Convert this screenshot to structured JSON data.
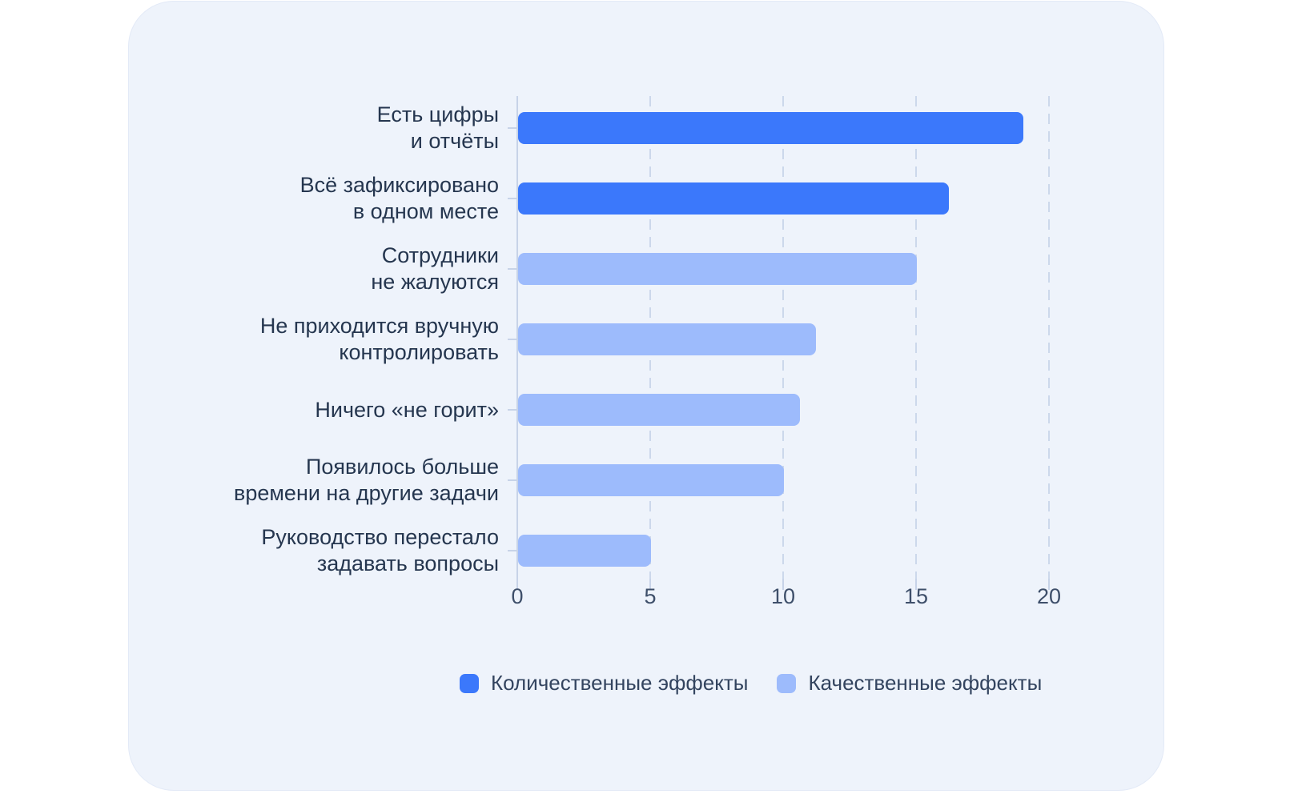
{
  "page": {
    "background": "#ffffff"
  },
  "card": {
    "background": "#eef3fb"
  },
  "chart_data": {
    "type": "bar",
    "orientation": "horizontal",
    "categories": [
      "Есть цифры\nи отчёты",
      "Всё зафиксировано\nв одном месте",
      "Сотрудники\nне жалуются",
      "Не приходится вручную\nконтролировать",
      "Ничего «не горит»",
      "Появилось больше\nвремени на другие задачи",
      "Руководство перестало\nзадавать вопросы"
    ],
    "values": [
      19,
      16.2,
      15,
      11.2,
      10.6,
      10,
      5
    ],
    "series_of_bar": [
      0,
      0,
      1,
      1,
      1,
      1,
      1
    ],
    "series": [
      {
        "name": "Количественные эффекты",
        "color": "#3b78fb"
      },
      {
        "name": "Качественные эффекты",
        "color": "#9dbbfc"
      }
    ],
    "xticks": [
      0,
      5,
      10,
      15,
      20
    ],
    "xlim": [
      0,
      20
    ],
    "xlabel": "",
    "ylabel": "",
    "title": "",
    "grid": "vertical-dashed",
    "legend_position": "bottom",
    "axis_color": "#c7d3e8",
    "gridline_color": "#ccd8eb",
    "label_color": "#25364f",
    "tick_label_color": "#3e4f6a"
  }
}
